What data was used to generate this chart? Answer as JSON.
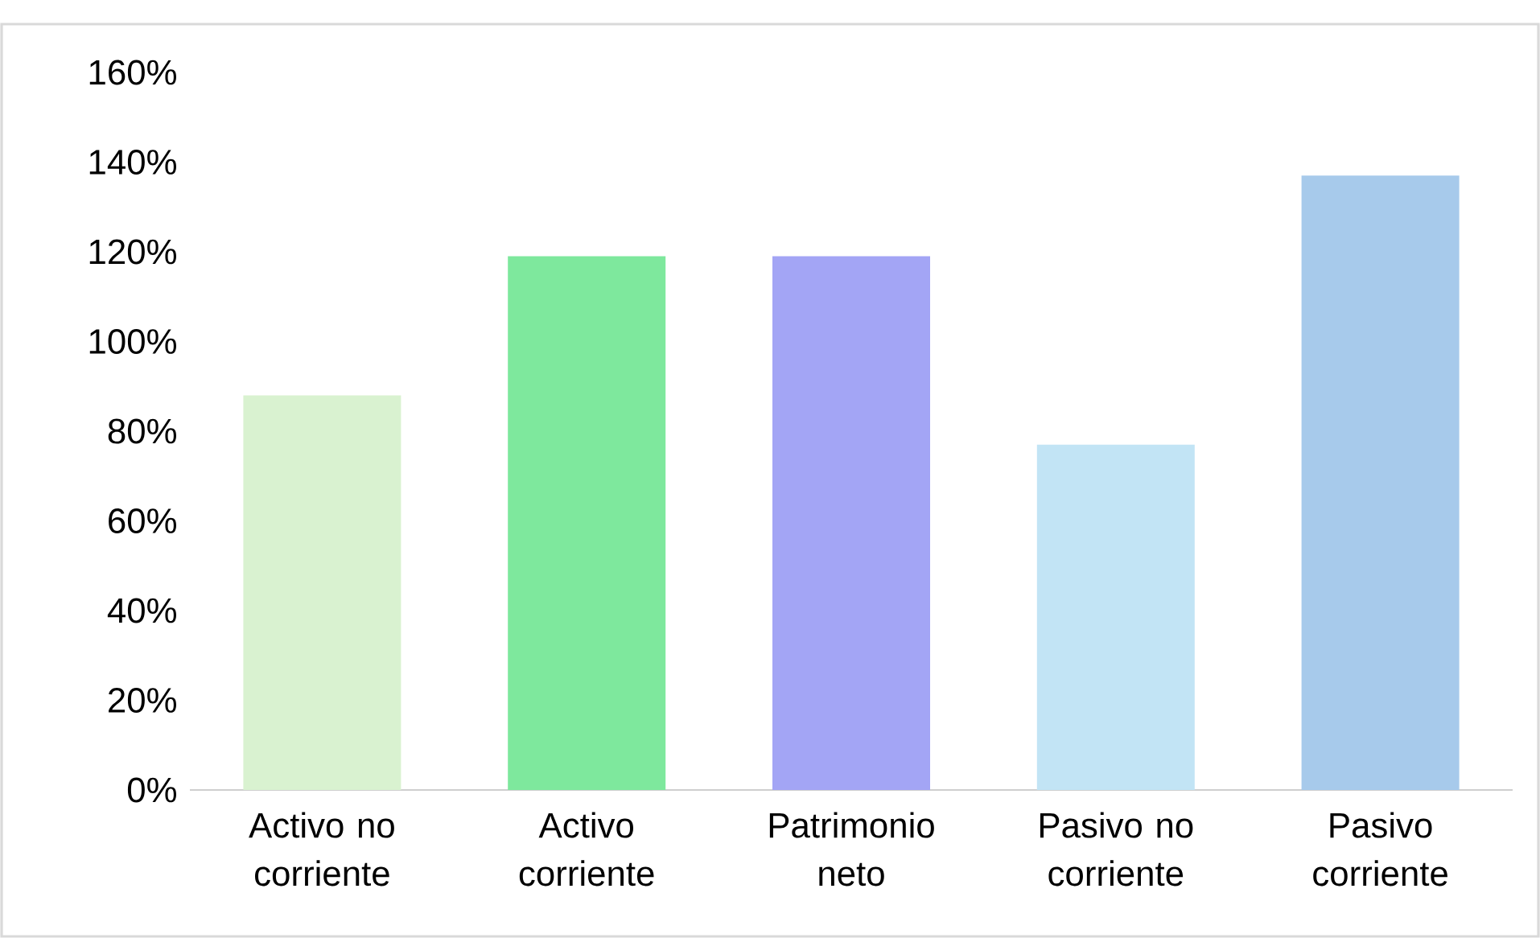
{
  "chart_data": {
    "type": "bar",
    "categories": [
      "Activo no corriente",
      "Activo corriente",
      "Patrimonio neto",
      "Pasivo no corriente",
      "Pasivo corriente"
    ],
    "values": [
      88,
      119,
      119,
      77,
      137
    ],
    "colors": [
      "#d9f2d0",
      "#7ee89d",
      "#a3a5f5",
      "#c2e4f5",
      "#a7caeb"
    ],
    "ylim": [
      0,
      160
    ],
    "yticks": [
      {
        "value": 0,
        "label": "0%"
      },
      {
        "value": 20,
        "label": "20%"
      },
      {
        "value": 40,
        "label": "40%"
      },
      {
        "value": 60,
        "label": "60%"
      },
      {
        "value": 80,
        "label": "80%"
      },
      {
        "value": 100,
        "label": "100%"
      },
      {
        "value": 120,
        "label": "120%"
      },
      {
        "value": 140,
        "label": "140%"
      },
      {
        "value": 160,
        "label": "160%"
      }
    ],
    "grid": false
  }
}
